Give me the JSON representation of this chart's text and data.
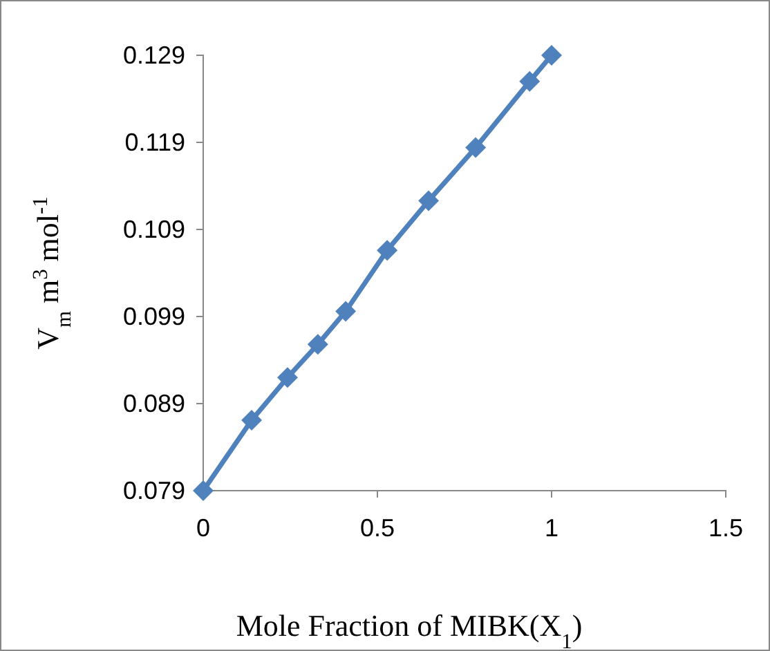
{
  "chart_data": {
    "type": "line",
    "xlabel": "Mole Fraction of MIBK(X$_{1}$)",
    "ylabel": "V$_{m}$  m$^{3}$ mol$^{-1}$",
    "x": [
      0,
      0.139,
      0.242,
      0.329,
      0.409,
      0.528,
      0.647,
      0.782,
      0.937,
      1
    ],
    "series": [
      {
        "color": "#4f81bd",
        "values": [
          0.079,
          0.0871,
          0.092,
          0.0958,
          0.0996,
          0.1066,
          0.1123,
          0.1184,
          0.126,
          0.129
        ]
      }
    ],
    "xlim": [
      0,
      1.5
    ],
    "xticks": [
      0,
      0.5,
      1,
      1.5
    ],
    "ylim": [
      0.079,
      0.129
    ],
    "yticks": [
      0.079,
      0.089,
      0.099,
      0.109,
      0.119,
      0.129
    ],
    "grid": false,
    "marker": "diamond",
    "line_style": "solid"
  }
}
